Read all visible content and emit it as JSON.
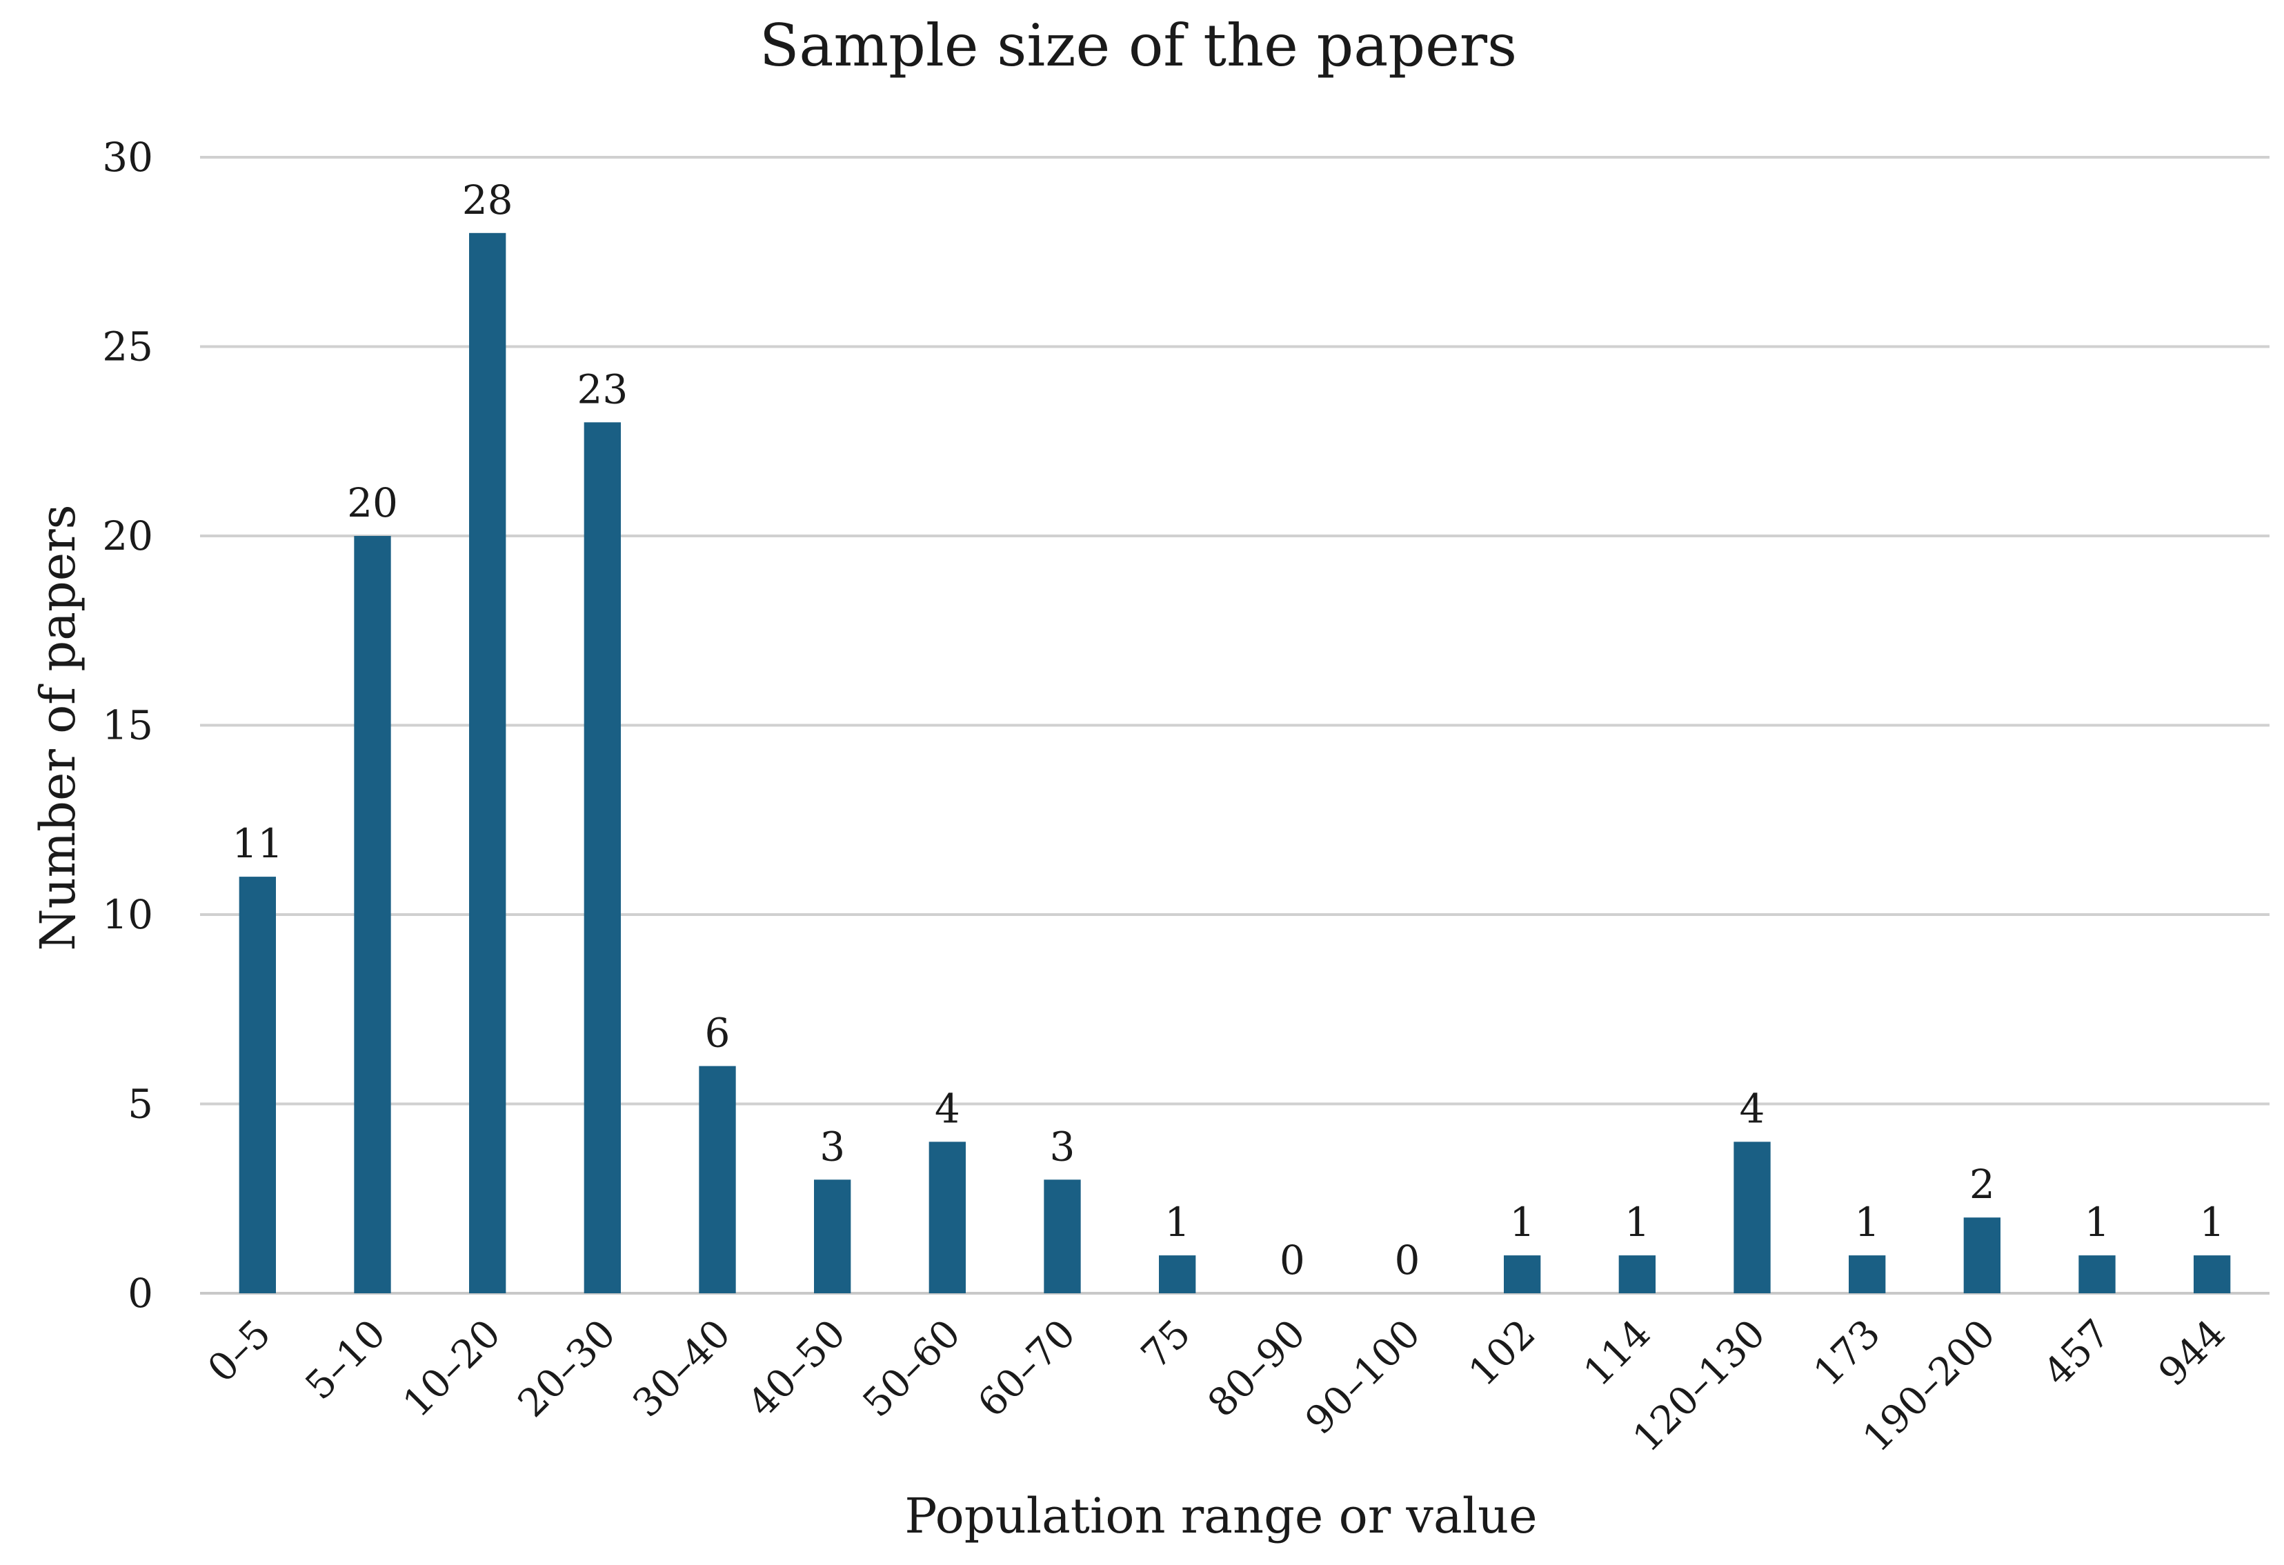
{
  "chart_data": {
    "type": "bar",
    "title": "Sample size of the papers",
    "xlabel": "Population range or value",
    "ylabel": "Number of papers",
    "categories": [
      "0–5",
      "5–10",
      "10–20",
      "20–30",
      "30–40",
      "40–50",
      "50–60",
      "60–70",
      "75",
      "80–90",
      "90–100",
      "102",
      "114",
      "120–130",
      "173",
      "190–200",
      "457",
      "944"
    ],
    "values": [
      11,
      20,
      28,
      23,
      6,
      3,
      4,
      3,
      1,
      0,
      0,
      1,
      1,
      4,
      1,
      2,
      1,
      1
    ],
    "yticks": [
      "0",
      "5",
      "10",
      "15",
      "20",
      "25",
      "30"
    ],
    "ylim": [
      0,
      30
    ],
    "grid": true,
    "legend": "none",
    "data_labels": true,
    "bar_color": "#1a5f84"
  }
}
